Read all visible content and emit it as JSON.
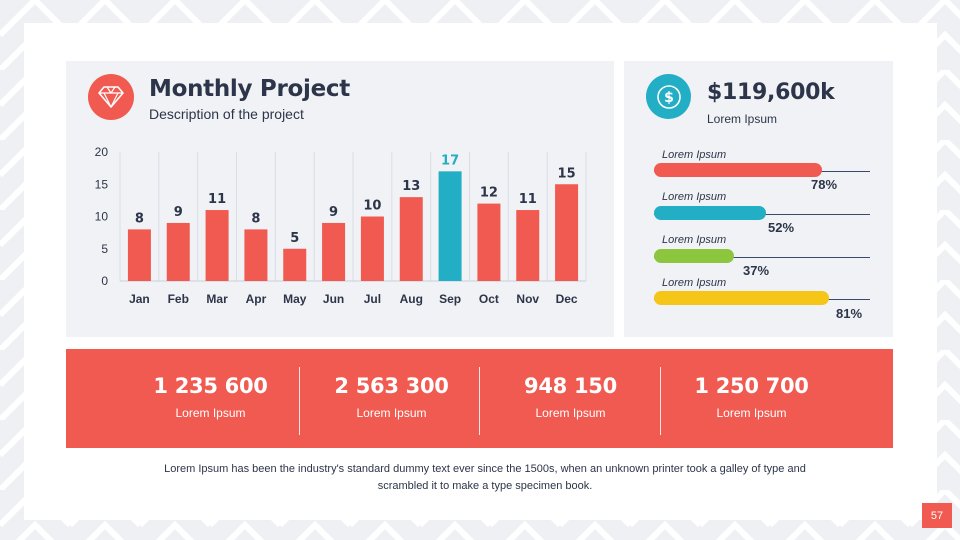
{
  "header": {
    "title": "Monthly Project",
    "subtitle": "Description of the project"
  },
  "summary": {
    "amount": "$119,600k",
    "label": "Lorem Ipsum"
  },
  "progress": [
    {
      "label": "Lorem Ipsum",
      "value": 0.78,
      "text": "78%",
      "color": "#f05a50"
    },
    {
      "label": "Lorem Ipsum",
      "value": 0.52,
      "text": "52%",
      "color": "#22aec4"
    },
    {
      "label": "Lorem Ipsum",
      "value": 0.37,
      "text": "37%",
      "color": "#8cc63f"
    },
    {
      "label": "Lorem Ipsum",
      "value": 0.81,
      "text": "81%",
      "color": "#f5c518"
    }
  ],
  "stats": [
    {
      "value": "1 235 600",
      "label": "Lorem Ipsum"
    },
    {
      "value": "2 563 300",
      "label": "Lorem Ipsum"
    },
    {
      "value": "948 150",
      "label": "Lorem Ipsum"
    },
    {
      "value": "1 250 700",
      "label": "Lorem Ipsum"
    }
  ],
  "footer": {
    "text": "Lorem Ipsum has been the industry's standard dummy text ever since the 1500s, when an unknown  printer took a galley of type and scrambled it to make a type specimen book."
  },
  "page_number": "57",
  "colors": {
    "accent": "#f05a50",
    "highlight": "#22aec4",
    "text": "#2c3549",
    "panel": "#f1f2f5"
  },
  "icons": {
    "title_icon": "diamond-icon",
    "amount_icon": "dollar-icon"
  },
  "chart_data": {
    "type": "bar",
    "title": "",
    "xlabel": "",
    "ylabel": "",
    "categories": [
      "Jan",
      "Feb",
      "Mar",
      "Apr",
      "May",
      "Jun",
      "Jul",
      "Aug",
      "Sep",
      "Oct",
      "Nov",
      "Dec"
    ],
    "values": [
      8,
      9,
      11,
      8,
      5,
      9,
      10,
      13,
      17,
      12,
      11,
      15
    ],
    "highlight_category": "Sep",
    "yticks": [
      0,
      5,
      10,
      15,
      20
    ],
    "ylim": [
      0,
      20
    ],
    "grid": true,
    "legend": "none"
  }
}
